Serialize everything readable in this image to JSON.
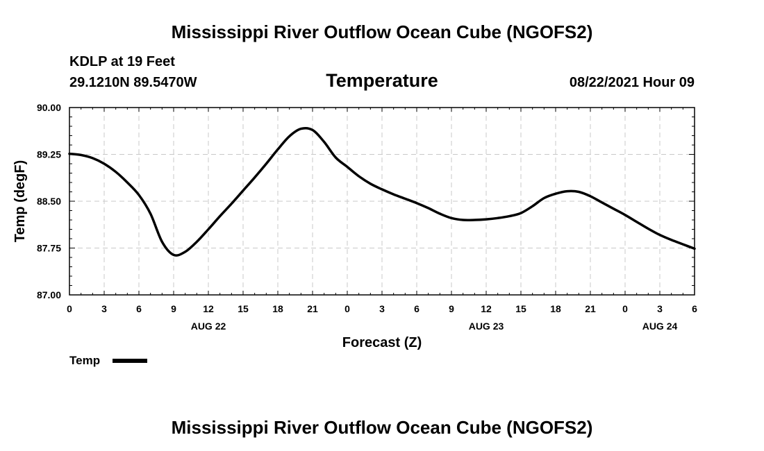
{
  "header": {
    "title": "Mississippi River Outflow Ocean Cube (NGOFS2)",
    "station": "KDLP at 19 Feet",
    "coords": "29.1210N  89.5470W",
    "datetime": "08/22/2021 Hour 09"
  },
  "footer": {
    "title": "Mississippi River Outflow Ocean Cube (NGOFS2)"
  },
  "chart_data": {
    "type": "line",
    "title": "Temperature",
    "xlabel": "Forecast (Z)",
    "ylabel": "Temp (degF)",
    "ylim": [
      87.0,
      90.0
    ],
    "xlim": [
      0,
      54
    ],
    "x_unit": "hours from AUG 22 00Z",
    "yticks": [
      "87.00",
      "87.75",
      "88.50",
      "89.25",
      "90.00"
    ],
    "xtick_labels": [
      "0",
      "3",
      "6",
      "9",
      "12",
      "15",
      "18",
      "21",
      "0",
      "3",
      "6",
      "9",
      "12",
      "15",
      "18",
      "21",
      "0",
      "3",
      "6"
    ],
    "day_labels": [
      {
        "label": "AUG 22",
        "hour": 12
      },
      {
        "label": "AUG 23",
        "hour": 36
      },
      {
        "label": "AUG 24",
        "hour": 51
      }
    ],
    "grid": true,
    "legend": {
      "position": "bottom-left",
      "label": "Temp"
    },
    "series": [
      {
        "name": "Temp",
        "x": [
          0,
          1,
          2,
          3,
          4,
          5,
          6,
          7,
          8,
          9,
          10,
          11,
          12,
          13,
          14,
          15,
          16,
          17,
          18,
          19,
          20,
          21,
          22,
          23,
          24,
          25,
          26,
          27,
          28,
          29,
          30,
          31,
          32,
          33,
          34,
          35,
          36,
          37,
          38,
          39,
          40,
          41,
          42,
          43,
          44,
          45,
          46,
          47,
          48,
          49,
          50,
          51,
          52,
          53,
          54
        ],
        "values": [
          89.26,
          89.24,
          89.19,
          89.1,
          88.97,
          88.8,
          88.6,
          88.3,
          87.85,
          87.64,
          87.69,
          87.85,
          88.05,
          88.26,
          88.46,
          88.67,
          88.88,
          89.1,
          89.33,
          89.54,
          89.66,
          89.64,
          89.45,
          89.2,
          89.05,
          88.9,
          88.78,
          88.69,
          88.61,
          88.54,
          88.47,
          88.39,
          88.3,
          88.23,
          88.2,
          88.2,
          88.21,
          88.23,
          88.26,
          88.31,
          88.42,
          88.55,
          88.62,
          88.66,
          88.65,
          88.58,
          88.48,
          88.38,
          88.28,
          88.17,
          88.06,
          87.96,
          87.88,
          87.81,
          87.74
        ]
      }
    ]
  }
}
